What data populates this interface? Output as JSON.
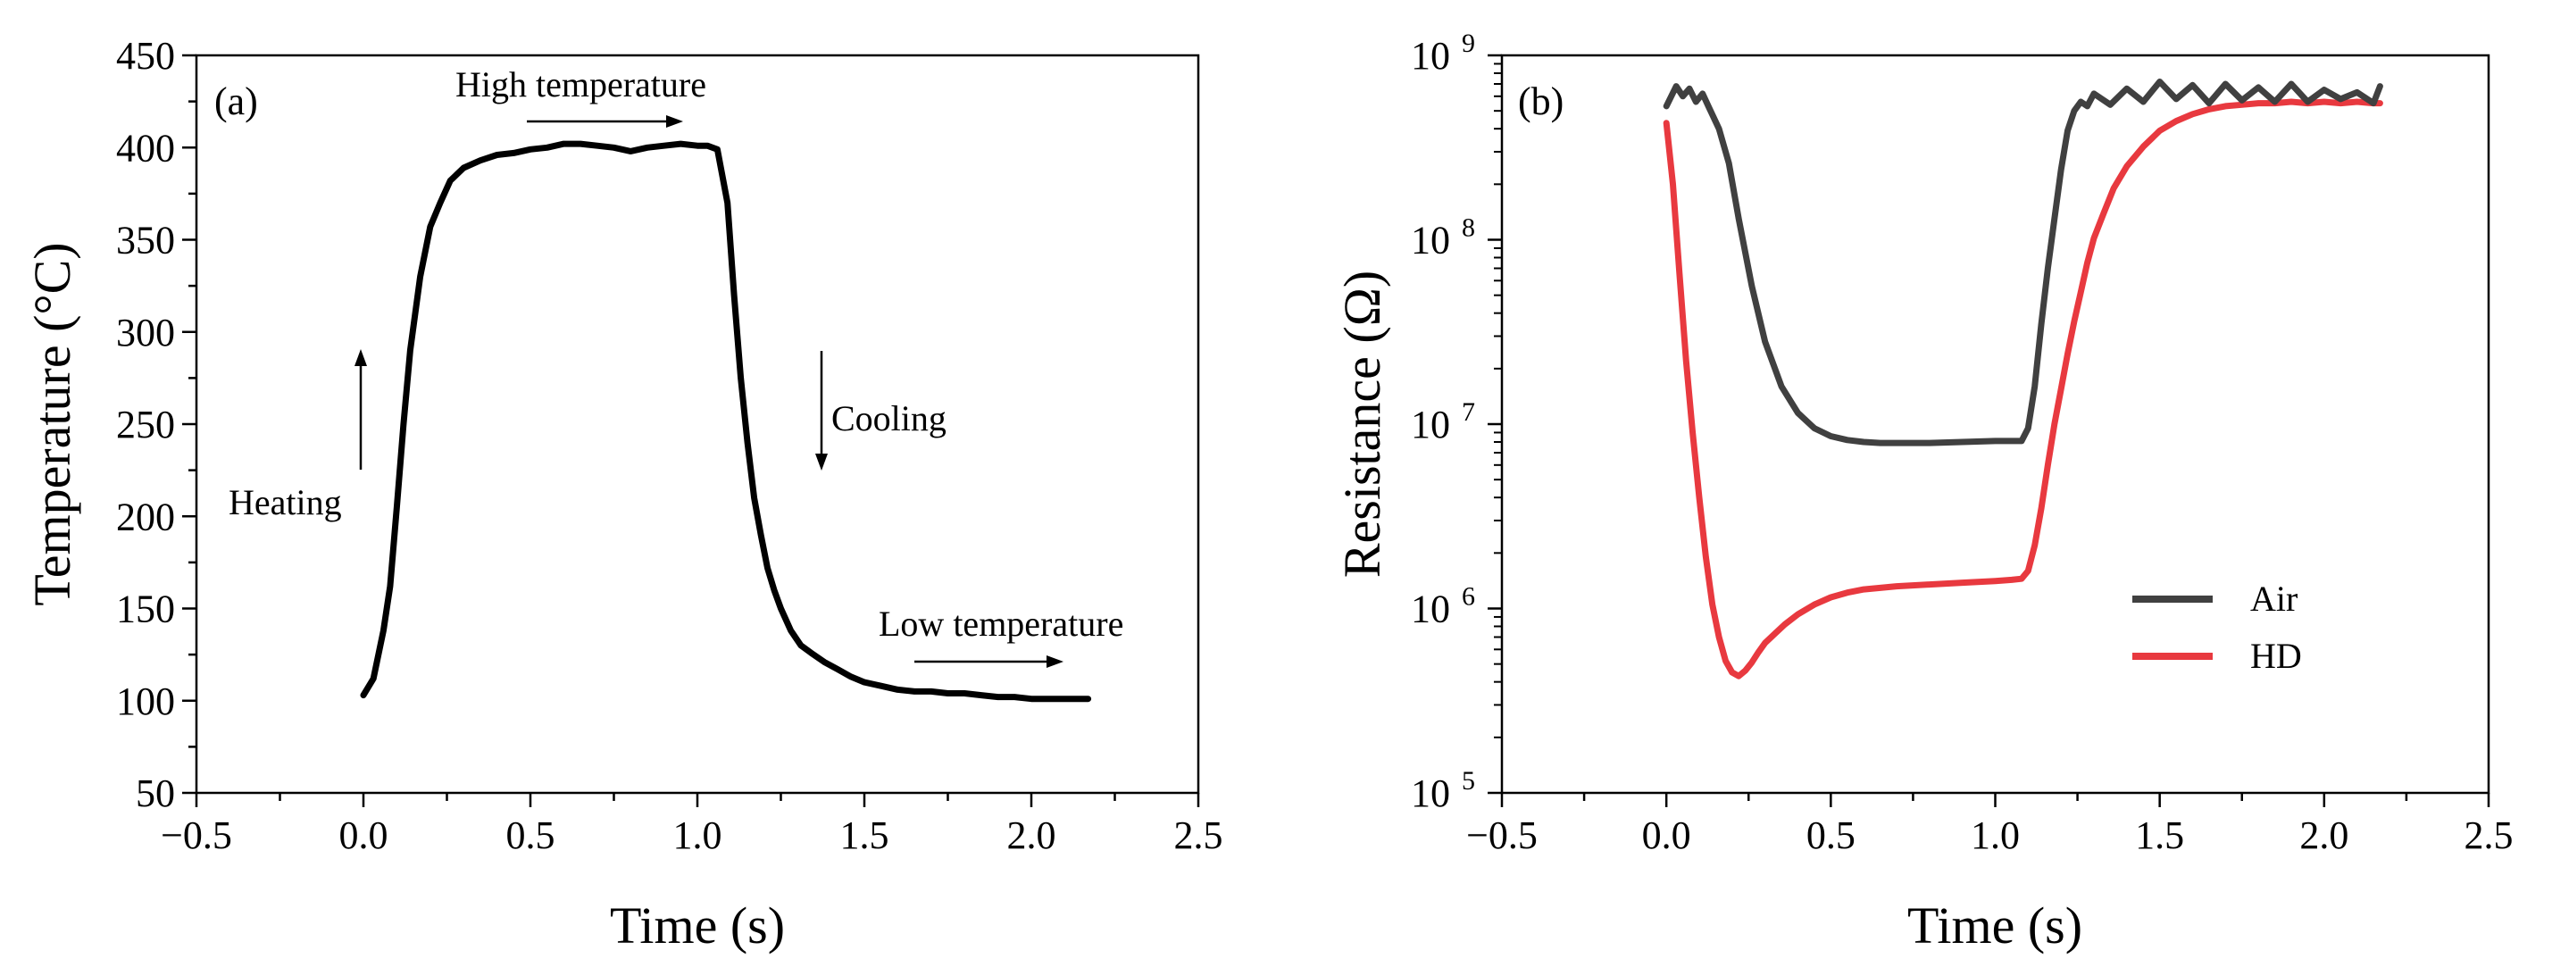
{
  "colors": {
    "temperature": "#000000",
    "air": "#404040",
    "hd": "#e8393f",
    "axis": "#000000"
  },
  "chart_data": [
    {
      "type": "line",
      "panel_label": "(a)",
      "xlabel": "Time (s)",
      "ylabel": "Temperature (°C)",
      "xlim": [
        -0.5,
        2.5
      ],
      "ylim": [
        50,
        450
      ],
      "xticks": [
        -0.5,
        0.0,
        0.5,
        1.0,
        1.5,
        2.0,
        2.5
      ],
      "xtick_labels": [
        "−0.5",
        "0.0",
        "0.5",
        "1.0",
        "1.5",
        "2.0",
        "2.5"
      ],
      "yticks": [
        50,
        100,
        150,
        200,
        250,
        300,
        350,
        400,
        450
      ],
      "ytick_labels": [
        "50",
        "100",
        "150",
        "200",
        "250",
        "300",
        "350",
        "400",
        "450"
      ],
      "series": [
        {
          "name": "Temperature",
          "x": [
            0.0,
            0.03,
            0.06,
            0.08,
            0.1,
            0.12,
            0.14,
            0.17,
            0.2,
            0.23,
            0.26,
            0.3,
            0.35,
            0.4,
            0.45,
            0.5,
            0.55,
            0.6,
            0.65,
            0.7,
            0.75,
            0.8,
            0.85,
            0.9,
            0.95,
            1.0,
            1.03,
            1.06,
            1.09,
            1.11,
            1.13,
            1.15,
            1.17,
            1.19,
            1.21,
            1.23,
            1.25,
            1.28,
            1.31,
            1.34,
            1.38,
            1.42,
            1.46,
            1.5,
            1.55,
            1.6,
            1.65,
            1.7,
            1.75,
            1.8,
            1.85,
            1.9,
            1.95,
            2.0,
            2.05,
            2.1,
            2.15,
            2.17
          ],
          "values": [
            103,
            112,
            138,
            162,
            205,
            250,
            290,
            330,
            357,
            370,
            382,
            389,
            393,
            396,
            397,
            399,
            400,
            402,
            402,
            401,
            400,
            398,
            400,
            401,
            402,
            401,
            401,
            399,
            370,
            320,
            275,
            240,
            210,
            190,
            172,
            160,
            150,
            138,
            130,
            126,
            121,
            117,
            113,
            110,
            108,
            106,
            105,
            105,
            104,
            104,
            103,
            102,
            102,
            101,
            101,
            101,
            101,
            101
          ]
        }
      ],
      "annotations": [
        {
          "text": "High temperature",
          "arrow": "right"
        },
        {
          "text": "Heating",
          "arrow": "up"
        },
        {
          "text": "Cooling",
          "arrow": "down"
        },
        {
          "text": "Low temperature",
          "arrow": "right"
        }
      ]
    },
    {
      "type": "line",
      "panel_label": "(b)",
      "xlabel": "Time (s)",
      "ylabel": "Resistance (Ω)",
      "yscale": "log",
      "xlim": [
        -0.5,
        2.5
      ],
      "ylim_exp": [
        5,
        9
      ],
      "xticks": [
        -0.5,
        0.0,
        0.5,
        1.0,
        1.5,
        2.0,
        2.5
      ],
      "xtick_labels": [
        "−0.5",
        "0.0",
        "0.5",
        "1.0",
        "1.5",
        "2.0",
        "2.5"
      ],
      "yticks_exp": [
        5,
        6,
        7,
        8,
        9
      ],
      "ytick_base": "10",
      "ytick_exponents": [
        "5",
        "6",
        "7",
        "8",
        "9"
      ],
      "legend": {
        "placement": "center-right",
        "entries": [
          "Air",
          "HD"
        ]
      },
      "series": [
        {
          "name": "Air",
          "x": [
            0.0,
            0.03,
            0.05,
            0.07,
            0.09,
            0.11,
            0.13,
            0.16,
            0.19,
            0.22,
            0.26,
            0.3,
            0.35,
            0.4,
            0.45,
            0.5,
            0.55,
            0.6,
            0.65,
            0.7,
            0.8,
            0.9,
            1.0,
            1.06,
            1.08,
            1.1,
            1.12,
            1.14,
            1.16,
            1.18,
            1.2,
            1.22,
            1.24,
            1.26,
            1.28,
            1.3,
            1.35,
            1.4,
            1.45,
            1.5,
            1.55,
            1.6,
            1.65,
            1.7,
            1.75,
            1.8,
            1.85,
            1.9,
            1.95,
            2.0,
            2.05,
            2.1,
            2.15,
            2.17
          ],
          "values": [
            530000000.0,
            680000000.0,
            600000000.0,
            660000000.0,
            560000000.0,
            620000000.0,
            520000000.0,
            400000000.0,
            260000000.0,
            130000000.0,
            56000000.0,
            28000000.0,
            16000000.0,
            11500000.0,
            9500000.0,
            8600000.0,
            8200000.0,
            8000000.0,
            7900000.0,
            7900000.0,
            7900000.0,
            8000000.0,
            8100000.0,
            8100000.0,
            8100000.0,
            9500000.0,
            16000000.0,
            35000000.0,
            70000000.0,
            130000000.0,
            240000000.0,
            390000000.0,
            500000000.0,
            560000000.0,
            530000000.0,
            620000000.0,
            540000000.0,
            660000000.0,
            560000000.0,
            720000000.0,
            580000000.0,
            690000000.0,
            550000000.0,
            700000000.0,
            570000000.0,
            670000000.0,
            560000000.0,
            700000000.0,
            560000000.0,
            650000000.0,
            580000000.0,
            630000000.0,
            550000000.0,
            680000000.0
          ]
        },
        {
          "name": "HD",
          "x": [
            0.0,
            0.02,
            0.04,
            0.06,
            0.08,
            0.1,
            0.12,
            0.14,
            0.16,
            0.18,
            0.2,
            0.22,
            0.24,
            0.26,
            0.28,
            0.3,
            0.33,
            0.36,
            0.4,
            0.45,
            0.5,
            0.55,
            0.6,
            0.7,
            0.8,
            0.9,
            1.0,
            1.05,
            1.08,
            1.1,
            1.12,
            1.14,
            1.16,
            1.18,
            1.2,
            1.22,
            1.24,
            1.26,
            1.28,
            1.3,
            1.33,
            1.36,
            1.4,
            1.45,
            1.5,
            1.55,
            1.6,
            1.65,
            1.7,
            1.75,
            1.8,
            1.85,
            1.9,
            1.95,
            2.0,
            2.05,
            2.1,
            2.15,
            2.17
          ],
          "values": [
            430000000.0,
            200000000.0,
            65000000.0,
            22000000.0,
            9000000.0,
            4000000.0,
            1900000.0,
            1050000.0,
            700000.0,
            520000.0,
            450000.0,
            430000.0,
            460000.0,
            510000.0,
            580000.0,
            650000.0,
            730000.0,
            820000.0,
            930000.0,
            1050000.0,
            1150000.0,
            1220000.0,
            1270000.0,
            1320000.0,
            1350000.0,
            1380000.0,
            1410000.0,
            1430000.0,
            1450000.0,
            1600000.0,
            2200000.0,
            3500000.0,
            6000000.0,
            10000000.0,
            15500000.0,
            24000000.0,
            36000000.0,
            52000000.0,
            75000000.0,
            102000000.0,
            140000000.0,
            190000000.0,
            250000000.0,
            320000000.0,
            390000000.0,
            440000000.0,
            480000000.0,
            510000000.0,
            530000000.0,
            540000000.0,
            550000000.0,
            550000000.0,
            560000000.0,
            550000000.0,
            560000000.0,
            550000000.0,
            560000000.0,
            550000000.0,
            550000000.0
          ]
        }
      ]
    }
  ]
}
